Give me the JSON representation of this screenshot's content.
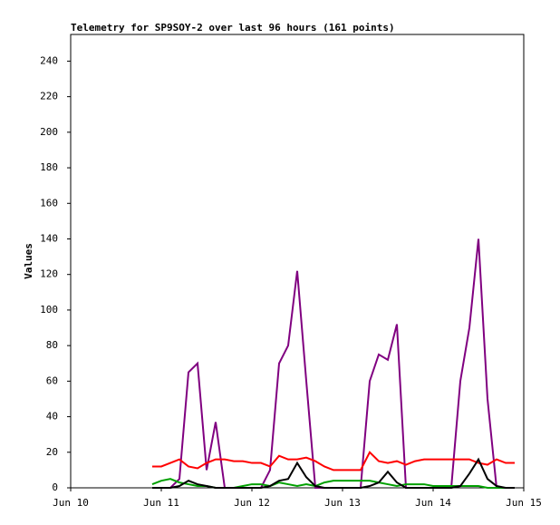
{
  "chart_data": {
    "type": "line",
    "title": "Telemetry for SP9SOY-2 over last 96 hours (161 points)",
    "ylabel": "Values",
    "x": [
      10.9,
      11.0,
      11.1,
      11.2,
      11.3,
      11.4,
      11.5,
      11.6,
      11.7,
      11.8,
      11.9,
      12.0,
      12.1,
      12.2,
      12.3,
      12.4,
      12.5,
      12.6,
      12.7,
      12.8,
      12.9,
      13.0,
      13.1,
      13.2,
      13.3,
      13.4,
      13.5,
      13.6,
      13.7,
      13.8,
      13.9,
      14.0,
      14.1,
      14.2,
      14.3,
      14.4,
      14.5,
      14.6,
      14.7,
      14.8,
      14.9
    ],
    "series": [
      {
        "color": "#800080",
        "values": [
          0,
          0,
          0,
          5,
          65,
          70,
          10,
          37,
          0,
          0,
          0,
          0,
          0,
          10,
          70,
          80,
          122,
          60,
          0,
          0,
          0,
          0,
          0,
          0,
          60,
          75,
          72,
          92,
          0,
          0,
          0,
          0,
          0,
          0,
          60,
          90,
          140,
          50,
          0,
          0,
          0
        ]
      },
      {
        "color": "#ff0000",
        "values": [
          12,
          12,
          14,
          16,
          12,
          11,
          14,
          16,
          16,
          15,
          15,
          14,
          14,
          12,
          18,
          16,
          16,
          17,
          15,
          12,
          10,
          10,
          10,
          10,
          20,
          15,
          14,
          15,
          13,
          15,
          16,
          16,
          16,
          16,
          16,
          16,
          14,
          13,
          16,
          14,
          14
        ]
      },
      {
        "color": "#00a000",
        "values": [
          2,
          4,
          5,
          3,
          2,
          1,
          1,
          0,
          0,
          0,
          1,
          2,
          2,
          1,
          3,
          2,
          1,
          2,
          1,
          3,
          4,
          4,
          4,
          4,
          4,
          3,
          2,
          1,
          2,
          2,
          2,
          1,
          1,
          1,
          1,
          1,
          1,
          0,
          0,
          0,
          0
        ]
      },
      {
        "color": "#000000",
        "values": [
          0,
          0,
          0,
          1,
          4,
          2,
          1,
          0,
          0,
          0,
          0,
          0,
          0,
          1,
          4,
          5,
          14,
          6,
          1,
          0,
          0,
          0,
          0,
          0,
          1,
          3,
          9,
          3,
          0,
          0,
          0,
          0,
          0,
          0,
          1,
          8,
          16,
          5,
          1,
          0,
          0
        ]
      }
    ],
    "xlim": [
      10,
      15
    ],
    "xticks": [
      {
        "value": 10,
        "label": "Jun 10"
      },
      {
        "value": 11,
        "label": "Jun 11"
      },
      {
        "value": 12,
        "label": "Jun 12"
      },
      {
        "value": 13,
        "label": "Jun 13"
      },
      {
        "value": 14,
        "label": "Jun 14"
      },
      {
        "value": 15,
        "label": "Jun 15"
      }
    ],
    "ylim": [
      0,
      255
    ],
    "yticks": [
      0,
      20,
      40,
      60,
      80,
      100,
      120,
      140,
      160,
      180,
      200,
      220,
      240
    ]
  }
}
